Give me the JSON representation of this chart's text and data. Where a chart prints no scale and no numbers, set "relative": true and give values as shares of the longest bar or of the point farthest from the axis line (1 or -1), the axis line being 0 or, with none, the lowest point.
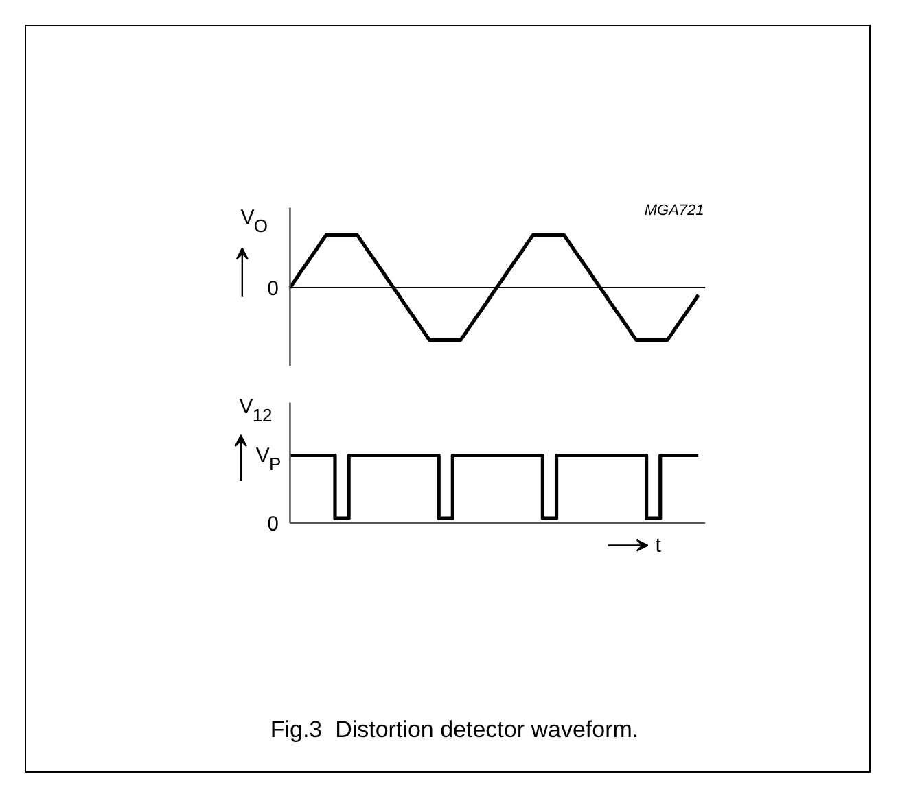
{
  "chart_data": [
    {
      "type": "line",
      "relative": true,
      "ylabel": "V$_{O}$",
      "categories": [
        null,
        null,
        null,
        null,
        null,
        null,
        null,
        null,
        null,
        null,
        null,
        null,
        null,
        null,
        null,
        null,
        null,
        null,
        null,
        null,
        null,
        null,
        null,
        null,
        null,
        null,
        null,
        null,
        null,
        null,
        null,
        null,
        null,
        null,
        null,
        null,
        null,
        null,
        null,
        null,
        null,
        null,
        null,
        null,
        null,
        null,
        null,
        null,
        null,
        null,
        null,
        null,
        null,
        null,
        null,
        null,
        null,
        null,
        null,
        null,
        null,
        null,
        null,
        null,
        null,
        null,
        null,
        null,
        null,
        null,
        null,
        null,
        null,
        null,
        null,
        null,
        null,
        null,
        null,
        null
      ],
      "values": [
        0,
        0.14,
        0.29,
        0.43,
        0.57,
        0.71,
        0.86,
        1,
        1,
        1,
        1,
        1,
        1,
        1,
        0.86,
        0.71,
        0.57,
        0.43,
        0.29,
        0.14,
        0,
        -0.14,
        -0.29,
        -0.43,
        -0.57,
        -0.71,
        -0.86,
        -1,
        -1,
        -1,
        -1,
        -1,
        -1,
        -1,
        -0.86,
        -0.71,
        -0.57,
        -0.43,
        -0.29,
        -0.14,
        0,
        0.14,
        0.29,
        0.43,
        0.57,
        0.71,
        0.86,
        1,
        1,
        1,
        1,
        1,
        1,
        1,
        0.86,
        0.71,
        0.57,
        0.43,
        0.29,
        0.14,
        0,
        -0.14,
        -0.29,
        -0.43,
        -0.57,
        -0.71,
        -0.86,
        -1,
        -1,
        -1,
        -1,
        -1,
        -1,
        -1,
        -0.86,
        -0.71,
        -0.57,
        -0.43,
        -0.29,
        -0.14
      ],
      "color": "#000000",
      "ref_lines": [
        {
          "axis": "y",
          "value": 0,
          "label": "0"
        }
      ],
      "annotations": [
        "MGA721"
      ]
    },
    {
      "type": "step",
      "relative": true,
      "ylabel": "V$_{12}$",
      "xlabel": "t",
      "categories": [
        null,
        null,
        null,
        null,
        null,
        null,
        null,
        null,
        null,
        null,
        null,
        null,
        null,
        null,
        null,
        null,
        null,
        null,
        null,
        null,
        null,
        null,
        null,
        null,
        null,
        null,
        null,
        null,
        null,
        null,
        null,
        null,
        null,
        null,
        null,
        null,
        null,
        null,
        null,
        null,
        null,
        null,
        null,
        null,
        null,
        null,
        null,
        null,
        null,
        null,
        null,
        null,
        null,
        null,
        null,
        null,
        null,
        null,
        null,
        null,
        null,
        null,
        null,
        null,
        null,
        null,
        null,
        null,
        null,
        null,
        null,
        null,
        null,
        null,
        null,
        null,
        null,
        null,
        null,
        null,
        null,
        null,
        null,
        null,
        null,
        null,
        null,
        null,
        null,
        null,
        null,
        null,
        null,
        null,
        null,
        null,
        null,
        null,
        null,
        null,
        null,
        null,
        null,
        null,
        null,
        null,
        null,
        null,
        null,
        null,
        null,
        null,
        null,
        null,
        null,
        null,
        null,
        null,
        null
      ],
      "values": [
        1,
        1,
        1,
        1,
        1,
        1,
        1,
        1,
        1,
        1,
        1,
        1,
        1,
        0.07,
        0.07,
        0.07,
        0.07,
        1,
        1,
        1,
        1,
        1,
        1,
        1,
        1,
        1,
        1,
        1,
        1,
        1,
        1,
        1,
        1,
        1,
        1,
        1,
        1,
        1,
        1,
        1,
        1,
        1,
        1,
        0.07,
        0.07,
        0.07,
        0.07,
        1,
        1,
        1,
        1,
        1,
        1,
        1,
        1,
        1,
        1,
        1,
        1,
        1,
        1,
        1,
        1,
        1,
        1,
        1,
        1,
        1,
        1,
        1,
        1,
        1,
        1,
        0.07,
        0.07,
        0.07,
        0.07,
        1,
        1,
        1,
        1,
        1,
        1,
        1,
        1,
        1,
        1,
        1,
        1,
        1,
        1,
        1,
        1,
        1,
        1,
        1,
        1,
        1,
        1,
        1,
        1,
        1,
        1,
        0.07,
        0.07,
        0.07,
        0.07,
        1,
        1,
        1,
        1,
        1,
        1,
        1,
        1,
        1,
        1,
        1,
        1
      ],
      "color": "#000000",
      "annotations": [
        "0",
        "V$_{P}$",
        "Fig.3  Distortion detector waveform."
      ]
    }
  ]
}
